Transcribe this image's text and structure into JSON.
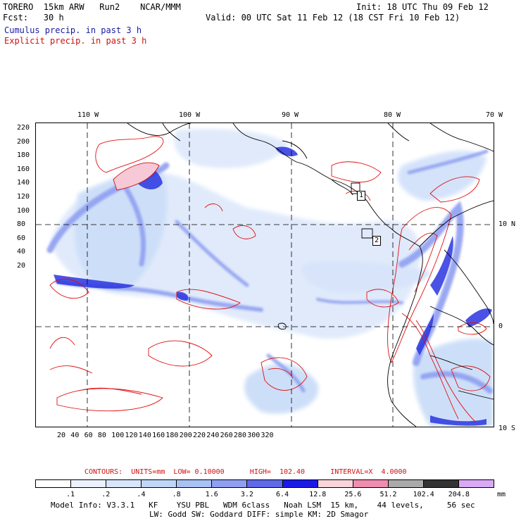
{
  "header": {
    "model": "TORERO  15km ARW   Run2    NCAR/MMM",
    "init": "Init: 18 UTC Thu 09 Feb 12",
    "fcst": "Fcst:   30 h",
    "valid": "Valid: 00 UTC Sat 11 Feb 12 (18 CST Fri 10 Feb 12)",
    "cumulus": "Cumulus precip. in past 3 h",
    "explicit": "Explicit precip. in past 3 h"
  },
  "map": {
    "top_lon_labels": [
      "110 W",
      "100 W",
      "90 W",
      "80 W",
      "70 W"
    ],
    "right_lat_labels": [
      "10 N",
      "0",
      "10 S"
    ],
    "y_ticks": [
      "220",
      "200",
      "180",
      "160",
      "140",
      "120",
      "100",
      "80",
      "60",
      "40",
      "20"
    ],
    "x_ticks": [
      "20",
      "40",
      "60",
      "80",
      "100",
      "120",
      "140",
      "160",
      "180",
      "200",
      "220",
      "240",
      "260",
      "280",
      "300",
      "320"
    ],
    "box_labels": [
      "1",
      "2"
    ],
    "colors": {
      "cumulus_light": "#c8dcf8",
      "cumulus_mid": "#7f8ef0",
      "cumulus_dark": "#2a35e0",
      "explicit_contour": "#e01010",
      "coast": "#000000"
    }
  },
  "contours_line": {
    "label": "CONTOURS:  UNITS=mm  LOW= 0.10000      HIGH=  102.40      INTERVAL=X  4.0000"
  },
  "colorbar": {
    "labels": [
      ".1",
      ".2",
      ".4",
      ".8",
      "1.6",
      "3.2",
      "6.4",
      "12.8",
      "25.6",
      "51.2",
      "102.4",
      "204.8"
    ],
    "unit": "mm",
    "colors": [
      "#ffffff",
      "#ebf2fd",
      "#d8e6fb",
      "#c0d6f7",
      "#a9c2f4",
      "#8f9ff1",
      "#5f6ae8",
      "#1a1ae6",
      "#f7d5da",
      "#f08cb0",
      "#aaaaaa",
      "#333333",
      "#d9a9f5"
    ]
  },
  "footer": {
    "line1": "Model Info: V3.3.1   KF    YSU PBL   WDM 6class   Noah LSM  15 km,    44 levels,     56 sec",
    "line2": "LW: Godd SW: Goddard DIFF: simple KM: 2D Smagor"
  }
}
